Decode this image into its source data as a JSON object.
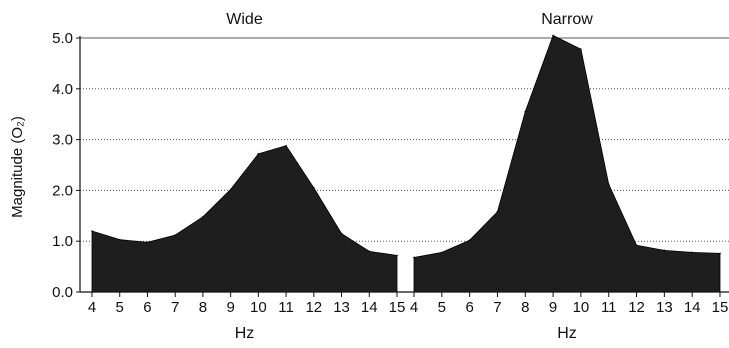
{
  "chart_data": {
    "type": "area",
    "ylabel": "Magnitude (O₂)",
    "ylim": [
      0,
      5
    ],
    "yticks": [
      "0.0",
      "1.0",
      "2.0",
      "3.0",
      "4.0",
      "5.0"
    ],
    "grid": "horizontal dotted",
    "fill_color": "#1e1e1e",
    "panels": [
      {
        "title": "Wide",
        "xlabel": "Hz",
        "x": [
          4,
          5,
          6,
          7,
          8,
          9,
          10,
          11,
          12,
          13,
          14,
          15
        ],
        "xtick_labels": [
          "4",
          "5",
          "6",
          "7",
          "8",
          "9",
          "10",
          "11",
          "12",
          "13",
          "14",
          "15"
        ],
        "values": [
          1.2,
          1.03,
          0.98,
          1.12,
          1.48,
          2.02,
          2.72,
          2.88,
          2.05,
          1.15,
          0.8,
          0.72
        ]
      },
      {
        "title": "Narrow",
        "xlabel": "Hz",
        "x": [
          4,
          5,
          6,
          7,
          8,
          9,
          10,
          11,
          12,
          13,
          14,
          15
        ],
        "xtick_labels": [
          "4",
          "5",
          "6",
          "7",
          "8",
          "9",
          "10",
          "11",
          "12",
          "13",
          "14",
          "15"
        ],
        "values": [
          0.68,
          0.78,
          1.02,
          1.58,
          3.55,
          5.05,
          4.78,
          2.12,
          0.92,
          0.82,
          0.78,
          0.76
        ]
      }
    ]
  }
}
